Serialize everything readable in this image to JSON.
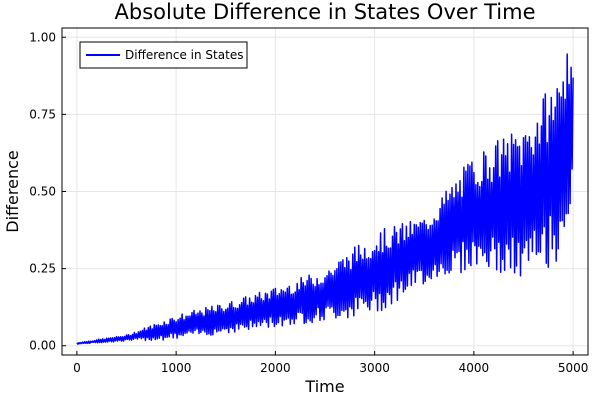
{
  "chart_data": {
    "type": "line",
    "title": "Absolute Difference in States Over Time",
    "xlabel": "Time",
    "ylabel": "Difference",
    "xlim": [
      -150,
      5150
    ],
    "ylim": [
      -0.03,
      1.03
    ],
    "xticks": [
      0,
      1000,
      2000,
      3000,
      4000,
      5000
    ],
    "xtick_labels": [
      "0",
      "1000",
      "2000",
      "3000",
      "4000",
      "5000"
    ],
    "yticks": [
      0,
      0.25,
      0.5,
      0.75,
      1.0
    ],
    "ytick_labels": [
      "0.00",
      "0.25",
      "0.50",
      "0.75",
      "1.00"
    ],
    "grid": true,
    "legend_position": "top-left",
    "series": [
      {
        "name": "Difference in States",
        "color": "#0000ff",
        "envelope": {
          "x": [
            0,
            500,
            1000,
            1500,
            2000,
            2500,
            3000,
            3500,
            4000,
            4500,
            4850,
            4900,
            5000
          ],
          "y_low": [
            0.005,
            0.015,
            0.02,
            0.04,
            0.06,
            0.08,
            0.1,
            0.2,
            0.25,
            0.2,
            0.27,
            0.35,
            0.45
          ],
          "y_high": [
            0.01,
            0.035,
            0.1,
            0.14,
            0.19,
            0.25,
            0.37,
            0.42,
            0.62,
            0.72,
            0.88,
            1.0,
            0.88
          ]
        }
      }
    ]
  }
}
